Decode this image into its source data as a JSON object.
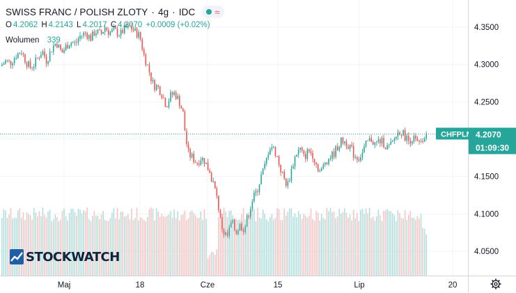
{
  "header": {
    "symbol_name": "SWISS FRANC / POLISH ZLOTY",
    "interval": "4g",
    "source": "IDC",
    "status_icon": "market-open-dot",
    "wave_icon": "wave-icon",
    "ohlc": {
      "o_label": "O",
      "o_value": "4.2062",
      "h_label": "H",
      "h_value": "4.2143",
      "l_label": "L",
      "l_value": "4.2017",
      "c_label": "C",
      "c_value": "4.2070",
      "change": "+0.0009 (+0.02%)"
    },
    "volume_label": "Wolumen",
    "volume_value": "339"
  },
  "price_tag": {
    "symbol": "CHFPLN",
    "price": "4.2070",
    "countdown": "01:09:30"
  },
  "logo": {
    "text": "STOCKWATCH"
  },
  "colors": {
    "up": "#26a69a",
    "down": "#ef5350",
    "tag": "#26a69a",
    "vol_up": "#b2dfdb",
    "vol_down": "#f5c6c5",
    "grid": "#f0f3fa",
    "axis_text": "#131722"
  },
  "chart_data": {
    "type": "candlestick",
    "title": "SWISS FRANC / POLISH ZLOTY",
    "ylim": [
      4.025,
      4.385
    ],
    "y_ticks": [
      4.35,
      4.3,
      4.25,
      4.2,
      4.15,
      4.1,
      4.05
    ],
    "y_tick_labels": [
      "4.3500",
      "4.3000",
      "4.2500",
      "4.2000",
      "4.1500",
      "4.1000",
      "4.0500"
    ],
    "x_tick_labels": [
      "Maj",
      "18",
      "Cze",
      "15",
      "Lip",
      "20"
    ],
    "last_price": 4.207,
    "grid": true,
    "close_path": [
      [
        0,
        4.298
      ],
      [
        8,
        4.305
      ],
      [
        14,
        4.302
      ],
      [
        22,
        4.312
      ],
      [
        30,
        4.318
      ],
      [
        36,
        4.305
      ],
      [
        42,
        4.296
      ],
      [
        48,
        4.3
      ],
      [
        54,
        4.31
      ],
      [
        60,
        4.318
      ],
      [
        66,
        4.305
      ],
      [
        74,
        4.322
      ],
      [
        80,
        4.33
      ],
      [
        88,
        4.315
      ],
      [
        94,
        4.324
      ],
      [
        100,
        4.33
      ],
      [
        108,
        4.328
      ],
      [
        114,
        4.338
      ],
      [
        122,
        4.342
      ],
      [
        130,
        4.335
      ],
      [
        136,
        4.345
      ],
      [
        144,
        4.34
      ],
      [
        150,
        4.35
      ],
      [
        156,
        4.343
      ],
      [
        164,
        4.345
      ],
      [
        172,
        4.34
      ],
      [
        178,
        4.348
      ],
      [
        186,
        4.35
      ],
      [
        192,
        4.345
      ],
      [
        200,
        4.338
      ],
      [
        206,
        4.312
      ],
      [
        212,
        4.296
      ],
      [
        216,
        4.282
      ],
      [
        220,
        4.272
      ],
      [
        226,
        4.27
      ],
      [
        232,
        4.26
      ],
      [
        238,
        4.245
      ],
      [
        244,
        4.258
      ],
      [
        250,
        4.262
      ],
      [
        256,
        4.252
      ],
      [
        262,
        4.235
      ],
      [
        266,
        4.2
      ],
      [
        270,
        4.18
      ],
      [
        276,
        4.175
      ],
      [
        282,
        4.168
      ],
      [
        288,
        4.175
      ],
      [
        294,
        4.17
      ],
      [
        300,
        4.155
      ],
      [
        306,
        4.14
      ],
      [
        312,
        4.115
      ],
      [
        316,
        4.09
      ],
      [
        320,
        4.075
      ],
      [
        326,
        4.07
      ],
      [
        332,
        4.09
      ],
      [
        338,
        4.075
      ],
      [
        344,
        4.085
      ],
      [
        350,
        4.08
      ],
      [
        356,
        4.1
      ],
      [
        362,
        4.12
      ],
      [
        368,
        4.13
      ],
      [
        374,
        4.15
      ],
      [
        380,
        4.165
      ],
      [
        386,
        4.19
      ],
      [
        390,
        4.19
      ],
      [
        396,
        4.18
      ],
      [
        402,
        4.16
      ],
      [
        408,
        4.145
      ],
      [
        412,
        4.138
      ],
      [
        418,
        4.16
      ],
      [
        424,
        4.18
      ],
      [
        430,
        4.187
      ],
      [
        436,
        4.175
      ],
      [
        442,
        4.185
      ],
      [
        448,
        4.18
      ],
      [
        454,
        4.165
      ],
      [
        460,
        4.155
      ],
      [
        466,
        4.17
      ],
      [
        472,
        4.175
      ],
      [
        478,
        4.18
      ],
      [
        484,
        4.19
      ],
      [
        490,
        4.198
      ],
      [
        496,
        4.196
      ],
      [
        502,
        4.19
      ],
      [
        508,
        4.178
      ],
      [
        514,
        4.175
      ],
      [
        520,
        4.182
      ],
      [
        526,
        4.195
      ],
      [
        532,
        4.2
      ],
      [
        538,
        4.193
      ],
      [
        544,
        4.198
      ],
      [
        550,
        4.195
      ],
      [
        556,
        4.188
      ],
      [
        562,
        4.193
      ],
      [
        568,
        4.205
      ],
      [
        574,
        4.212
      ],
      [
        580,
        4.205
      ],
      [
        586,
        4.198
      ],
      [
        592,
        4.202
      ],
      [
        598,
        4.195
      ],
      [
        604,
        4.192
      ],
      [
        610,
        4.207
      ]
    ]
  }
}
